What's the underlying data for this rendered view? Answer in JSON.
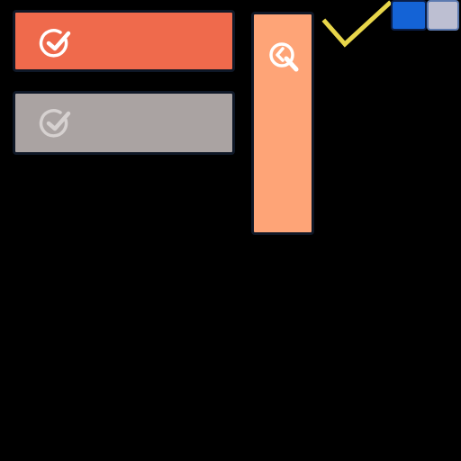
{
  "colors": {
    "primary_button": "#ef6a4c",
    "disabled_button": "#aaa3a2",
    "search_button": "#fea477",
    "check_icon_primary": "#ffffff",
    "check_icon_disabled": "#d6d1d0",
    "search_icon": "#ffffff",
    "big_checkmark": "#e8d64a",
    "swatch_blue": "#1463d6",
    "swatch_gray": "#bdbfd2"
  },
  "icons": {
    "primary_button_icon": "check-circle-icon",
    "disabled_button_icon": "check-circle-icon",
    "search_button_icon": "search-icon",
    "standalone_mark": "checkmark-icon"
  }
}
